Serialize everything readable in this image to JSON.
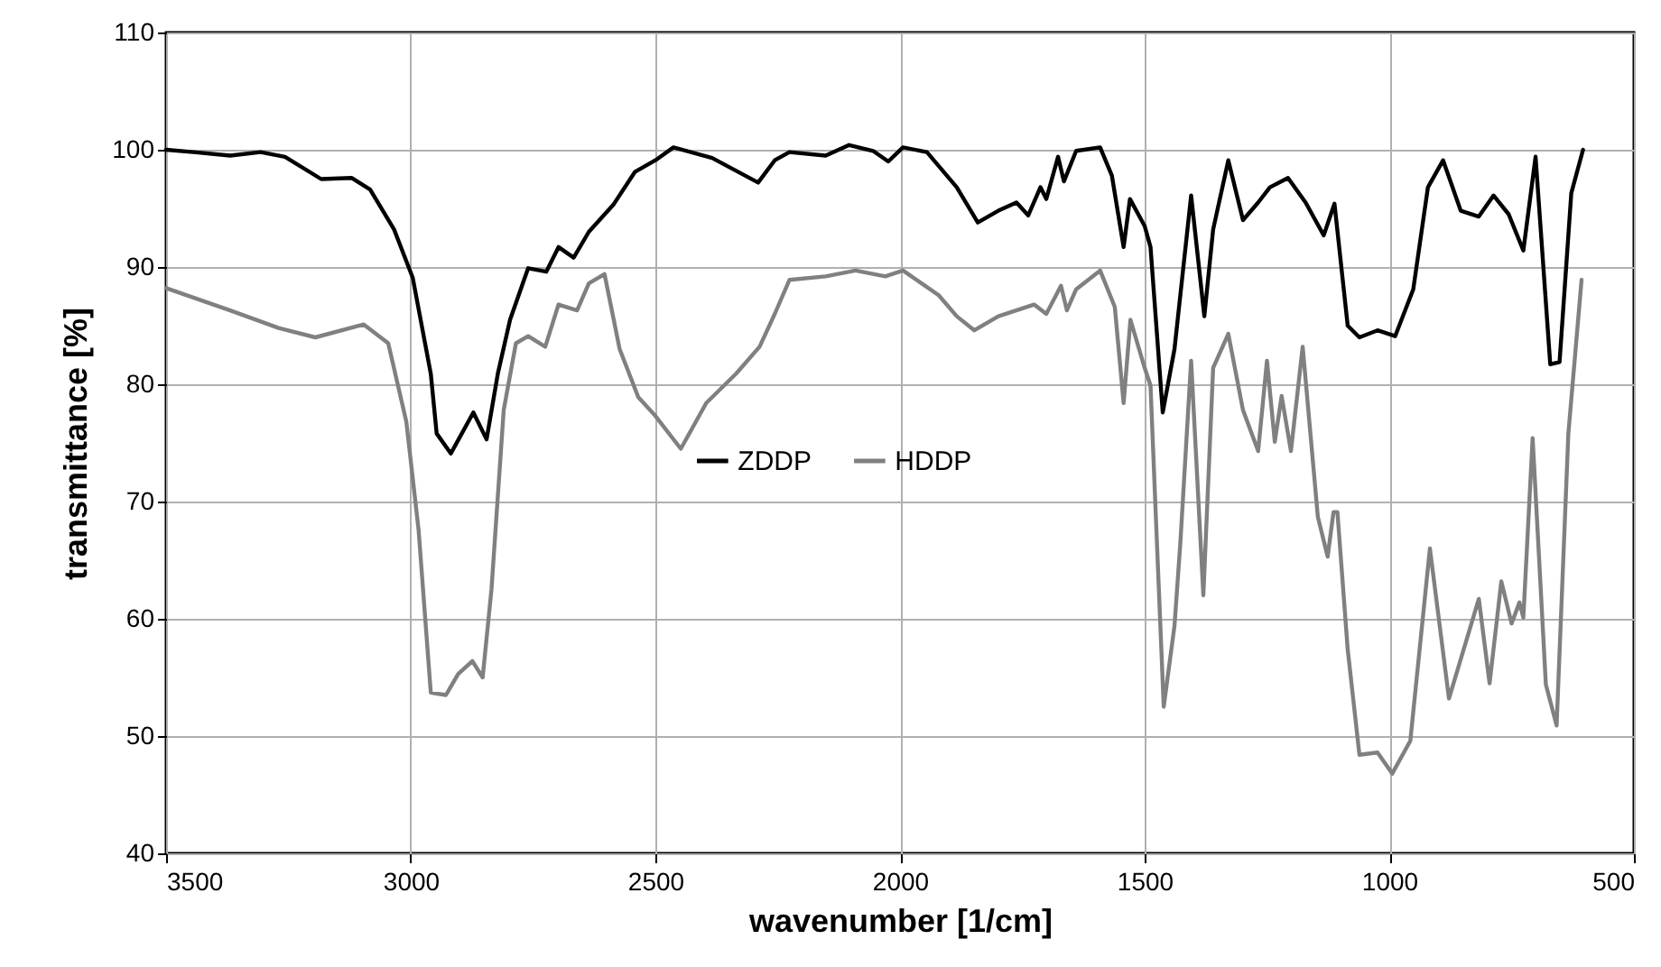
{
  "chart_data": {
    "type": "line",
    "xlabel": "wavenumber [1/cm]",
    "ylabel": "transmittance [%]",
    "xlim": [
      3500,
      500
    ],
    "xticks": [
      3500,
      3000,
      2500,
      2000,
      1500,
      1000,
      500
    ],
    "ylim": [
      40,
      110
    ],
    "yticks": [
      40,
      50,
      60,
      70,
      80,
      90,
      100,
      110
    ],
    "grid": true,
    "legend": "center",
    "marker": "none",
    "line_style": "solid",
    "series": [
      {
        "name": "ZDDP",
        "color": "#000000",
        "x": [
          3500,
          3444,
          3369,
          3307,
          3257,
          3183,
          3121,
          3083,
          3034,
          2996,
          2959,
          2947,
          2918,
          2872,
          2845,
          2822,
          2797,
          2760,
          2723,
          2698,
          2667,
          2636,
          2586,
          2542,
          2500,
          2463,
          2384,
          2290,
          2256,
          2226,
          2152,
          2104,
          2055,
          2024,
          1994,
          1945,
          1884,
          1841,
          1799,
          1762,
          1738,
          1713,
          1701,
          1677,
          1665,
          1640,
          1591,
          1567,
          1543,
          1530,
          1500,
          1488,
          1463,
          1439,
          1405,
          1378,
          1360,
          1329,
          1299,
          1268,
          1244,
          1207,
          1171,
          1134,
          1112,
          1085,
          1061,
          1024,
          988,
          951,
          921,
          890,
          854,
          817,
          787,
          756,
          726,
          701,
          671,
          652,
          628,
          604
        ],
        "values": [
          100,
          99.8,
          99.5,
          99.8,
          99.4,
          97.5,
          97.6,
          96.6,
          93.2,
          89.1,
          80.9,
          75.8,
          74.1,
          77.6,
          75.3,
          80.9,
          85.5,
          89.9,
          89.6,
          91.7,
          90.8,
          93,
          95.3,
          98.1,
          99.1,
          100.2,
          99.3,
          97.2,
          99.1,
          99.8,
          99.5,
          100.4,
          99.9,
          99,
          100.2,
          99.8,
          96.8,
          93.8,
          94.8,
          95.5,
          94.4,
          96.8,
          95.8,
          99.4,
          97.3,
          99.9,
          100.2,
          97.8,
          91.7,
          95.8,
          93.5,
          91.7,
          77.6,
          83,
          96.1,
          85.8,
          93.2,
          99.1,
          94,
          95.5,
          96.8,
          97.6,
          95.5,
          92.7,
          95.4,
          85,
          84,
          84.6,
          84.1,
          88.1,
          96.8,
          99.1,
          94.8,
          94.3,
          96.1,
          94.5,
          91.4,
          99.4,
          81.7,
          81.9,
          96.3,
          100
        ]
      },
      {
        "name": "HDDP",
        "color": "#808080",
        "x": [
          3500,
          3369,
          3270,
          3195,
          3096,
          3046,
          3009,
          2984,
          2959,
          2928,
          2903,
          2874,
          2853,
          2835,
          2810,
          2785,
          2760,
          2725,
          2698,
          2660,
          2636,
          2604,
          2573,
          2535,
          2500,
          2448,
          2396,
          2335,
          2287,
          2256,
          2226,
          2152,
          2091,
          2030,
          1994,
          1921,
          1884,
          1848,
          1799,
          1726,
          1701,
          1671,
          1659,
          1640,
          1591,
          1561,
          1543,
          1529,
          1500,
          1488,
          1476,
          1461,
          1439,
          1427,
          1405,
          1380,
          1360,
          1329,
          1299,
          1268,
          1250,
          1234,
          1220,
          1201,
          1177,
          1146,
          1126,
          1114,
          1106,
          1085,
          1061,
          1024,
          994,
          957,
          917,
          878,
          817,
          795,
          771,
          750,
          734,
          726,
          707,
          680,
          658,
          634,
          607
        ],
        "values": [
          88.2,
          86.3,
          84.8,
          84,
          85.1,
          83.5,
          76.8,
          67.6,
          53.7,
          53.5,
          55.3,
          56.4,
          55,
          62.5,
          77.8,
          83.5,
          84.1,
          83.2,
          86.8,
          86.3,
          88.6,
          89.4,
          83,
          78.9,
          77.3,
          74.5,
          78.4,
          80.9,
          83.2,
          86,
          88.9,
          89.2,
          89.7,
          89.2,
          89.7,
          87.6,
          85.8,
          84.6,
          85.8,
          86.8,
          86,
          88.4,
          86.3,
          88.1,
          89.7,
          86.6,
          78.4,
          85.5,
          81.4,
          79.9,
          67.6,
          52.5,
          59.4,
          66.5,
          82,
          62,
          81.4,
          84.3,
          77.8,
          74.3,
          82,
          75.1,
          79,
          74.3,
          83.2,
          68.7,
          65.3,
          69.1,
          69.1,
          57.4,
          48.4,
          48.6,
          46.8,
          49.6,
          66,
          53.2,
          61.7,
          54.5,
          63.2,
          59.6,
          61.4,
          60.1,
          75.4,
          54.4,
          50.9,
          75.8,
          88.9
        ]
      }
    ]
  }
}
